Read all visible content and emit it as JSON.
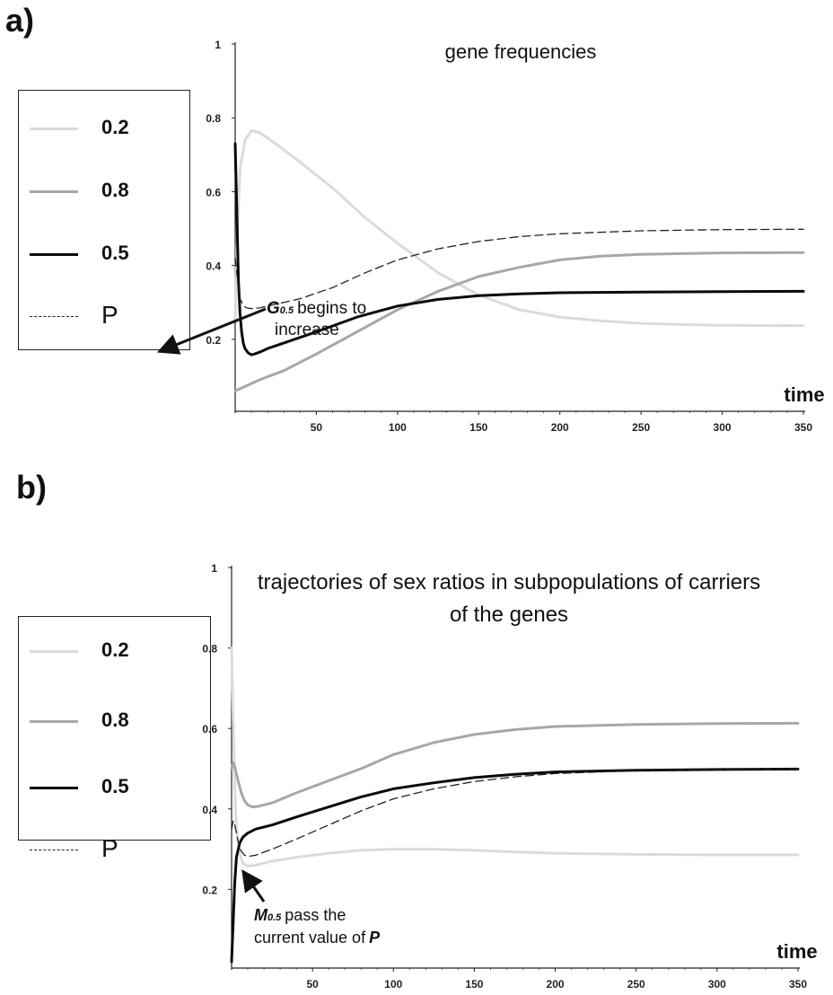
{
  "charts": [
    {
      "panel_label": "a)",
      "legend": [
        {
          "label": "0.2",
          "color": "#d8dcdc",
          "dash": false
        },
        {
          "label": "0.8",
          "color": "#a6a8a8",
          "dash": false
        },
        {
          "label": "0.5",
          "color": "#0a0a0a",
          "dash": false
        },
        {
          "label": "P",
          "color": "#222222",
          "dash": true
        }
      ],
      "annotation": {
        "lead": "G",
        "sub": "0.5",
        "rest": "begins to",
        "line2": "increase"
      }
    },
    {
      "panel_label": "b)",
      "legend": [
        {
          "label": "0.2",
          "color": "#d8dcdc",
          "dash": false
        },
        {
          "label": "0.8",
          "color": "#a6a8a8",
          "dash": false
        },
        {
          "label": "0.5",
          "color": "#0a0a0a",
          "dash": false
        },
        {
          "label": "P",
          "color": "#222222",
          "dash": true
        }
      ],
      "annotation": {
        "lead": "M",
        "sub": "0.5",
        "rest": "pass the",
        "line2_pre": "current value of",
        "line2_em": "P"
      }
    }
  ],
  "chart_data": [
    {
      "type": "line",
      "title": "gene frequencies",
      "xlabel": "time",
      "ylabel": "",
      "xlim": [
        0,
        350
      ],
      "ylim": [
        0,
        1
      ],
      "xticks": [
        50,
        100,
        150,
        200,
        250,
        300,
        350
      ],
      "yticks": [
        0.2,
        0.4,
        0.6,
        0.8,
        1
      ],
      "ytick_labels": [
        "0.2",
        "0.4",
        "0.6",
        "0.8",
        "1"
      ],
      "series": [
        {
          "name": "0.2",
          "color": "#d8dcdc",
          "dash": false,
          "x": [
            0,
            1,
            3,
            6,
            10,
            15,
            25,
            40,
            60,
            80,
            100,
            125,
            150,
            175,
            200,
            225,
            250,
            275,
            300,
            350
          ],
          "y": [
            0.25,
            0.45,
            0.66,
            0.74,
            0.765,
            0.76,
            0.73,
            0.68,
            0.61,
            0.53,
            0.46,
            0.38,
            0.32,
            0.28,
            0.26,
            0.25,
            0.243,
            0.24,
            0.238,
            0.237
          ]
        },
        {
          "name": "0.8",
          "color": "#a6a8a8",
          "dash": false,
          "x": [
            0,
            5,
            15,
            30,
            50,
            75,
            100,
            125,
            150,
            175,
            200,
            225,
            250,
            275,
            300,
            350
          ],
          "y": [
            0.06,
            0.07,
            0.09,
            0.115,
            0.16,
            0.22,
            0.28,
            0.33,
            0.37,
            0.395,
            0.415,
            0.425,
            0.43,
            0.432,
            0.434,
            0.435
          ]
        },
        {
          "name": "0.5",
          "color": "#0a0a0a",
          "dash": false,
          "x": [
            0,
            1,
            2,
            3,
            4,
            5,
            6,
            8,
            10,
            12,
            15,
            20,
            30,
            50,
            75,
            100,
            125,
            150,
            175,
            200,
            250,
            300,
            350
          ],
          "y": [
            0.73,
            0.55,
            0.36,
            0.27,
            0.22,
            0.19,
            0.175,
            0.163,
            0.158,
            0.16,
            0.165,
            0.175,
            0.19,
            0.22,
            0.26,
            0.29,
            0.308,
            0.318,
            0.323,
            0.326,
            0.328,
            0.329,
            0.33
          ]
        },
        {
          "name": "P",
          "color": "#222222",
          "dash": true,
          "x": [
            0,
            1,
            2,
            3,
            5,
            7,
            10,
            15,
            25,
            40,
            60,
            80,
            100,
            125,
            150,
            175,
            200,
            250,
            300,
            350
          ],
          "y": [
            0.42,
            0.38,
            0.34,
            0.31,
            0.292,
            0.285,
            0.283,
            0.285,
            0.295,
            0.31,
            0.34,
            0.38,
            0.415,
            0.445,
            0.465,
            0.478,
            0.486,
            0.494,
            0.497,
            0.498
          ]
        }
      ]
    },
    {
      "type": "line",
      "title": "trajectories of sex ratios in subpopulations of carriers",
      "title_line2": "of the genes",
      "xlabel": "time",
      "ylabel": "",
      "xlim": [
        0,
        350
      ],
      "ylim": [
        0,
        1
      ],
      "xticks": [
        50,
        100,
        150,
        200,
        250,
        300,
        350
      ],
      "yticks": [
        0.2,
        0.4,
        0.6,
        0.8,
        1
      ],
      "ytick_labels": [
        "0.2",
        "0.4",
        "0.6",
        "0.8",
        "1"
      ],
      "series": [
        {
          "name": "0.2",
          "color": "#d8dcdc",
          "dash": false,
          "x": [
            0,
            1,
            2,
            3,
            5,
            7,
            10,
            15,
            25,
            40,
            60,
            80,
            100,
            125,
            150,
            175,
            200,
            250,
            300,
            350
          ],
          "y": [
            0.8,
            0.62,
            0.45,
            0.35,
            0.29,
            0.265,
            0.258,
            0.26,
            0.27,
            0.28,
            0.29,
            0.297,
            0.3,
            0.3,
            0.297,
            0.293,
            0.29,
            0.287,
            0.286,
            0.286
          ]
        },
        {
          "name": "0.8",
          "color": "#a6a8a8",
          "dash": false,
          "x": [
            0,
            1,
            2,
            4,
            6,
            8,
            10,
            13,
            17,
            25,
            40,
            60,
            80,
            100,
            125,
            150,
            175,
            200,
            250,
            300,
            350
          ],
          "y": [
            0.5,
            0.515,
            0.505,
            0.47,
            0.44,
            0.42,
            0.41,
            0.405,
            0.407,
            0.415,
            0.44,
            0.47,
            0.5,
            0.535,
            0.565,
            0.585,
            0.597,
            0.605,
            0.61,
            0.612,
            0.613
          ]
        },
        {
          "name": "0.5",
          "color": "#0a0a0a",
          "dash": false,
          "x": [
            0,
            1,
            2,
            3,
            5,
            7,
            10,
            15,
            25,
            40,
            60,
            80,
            100,
            125,
            150,
            175,
            200,
            250,
            300,
            350
          ],
          "y": [
            0.02,
            0.12,
            0.22,
            0.28,
            0.315,
            0.33,
            0.34,
            0.35,
            0.36,
            0.38,
            0.405,
            0.43,
            0.45,
            0.465,
            0.478,
            0.486,
            0.492,
            0.496,
            0.498,
            0.499
          ]
        },
        {
          "name": "P",
          "color": "#222222",
          "dash": true,
          "x": [
            0,
            1,
            2,
            4,
            6,
            8,
            10,
            15,
            25,
            40,
            60,
            80,
            100,
            125,
            150,
            175,
            200,
            250,
            300,
            350
          ],
          "y": [
            0.35,
            0.37,
            0.36,
            0.32,
            0.295,
            0.285,
            0.282,
            0.285,
            0.3,
            0.325,
            0.36,
            0.395,
            0.425,
            0.45,
            0.468,
            0.48,
            0.488,
            0.495,
            0.498,
            0.499
          ]
        }
      ]
    }
  ]
}
